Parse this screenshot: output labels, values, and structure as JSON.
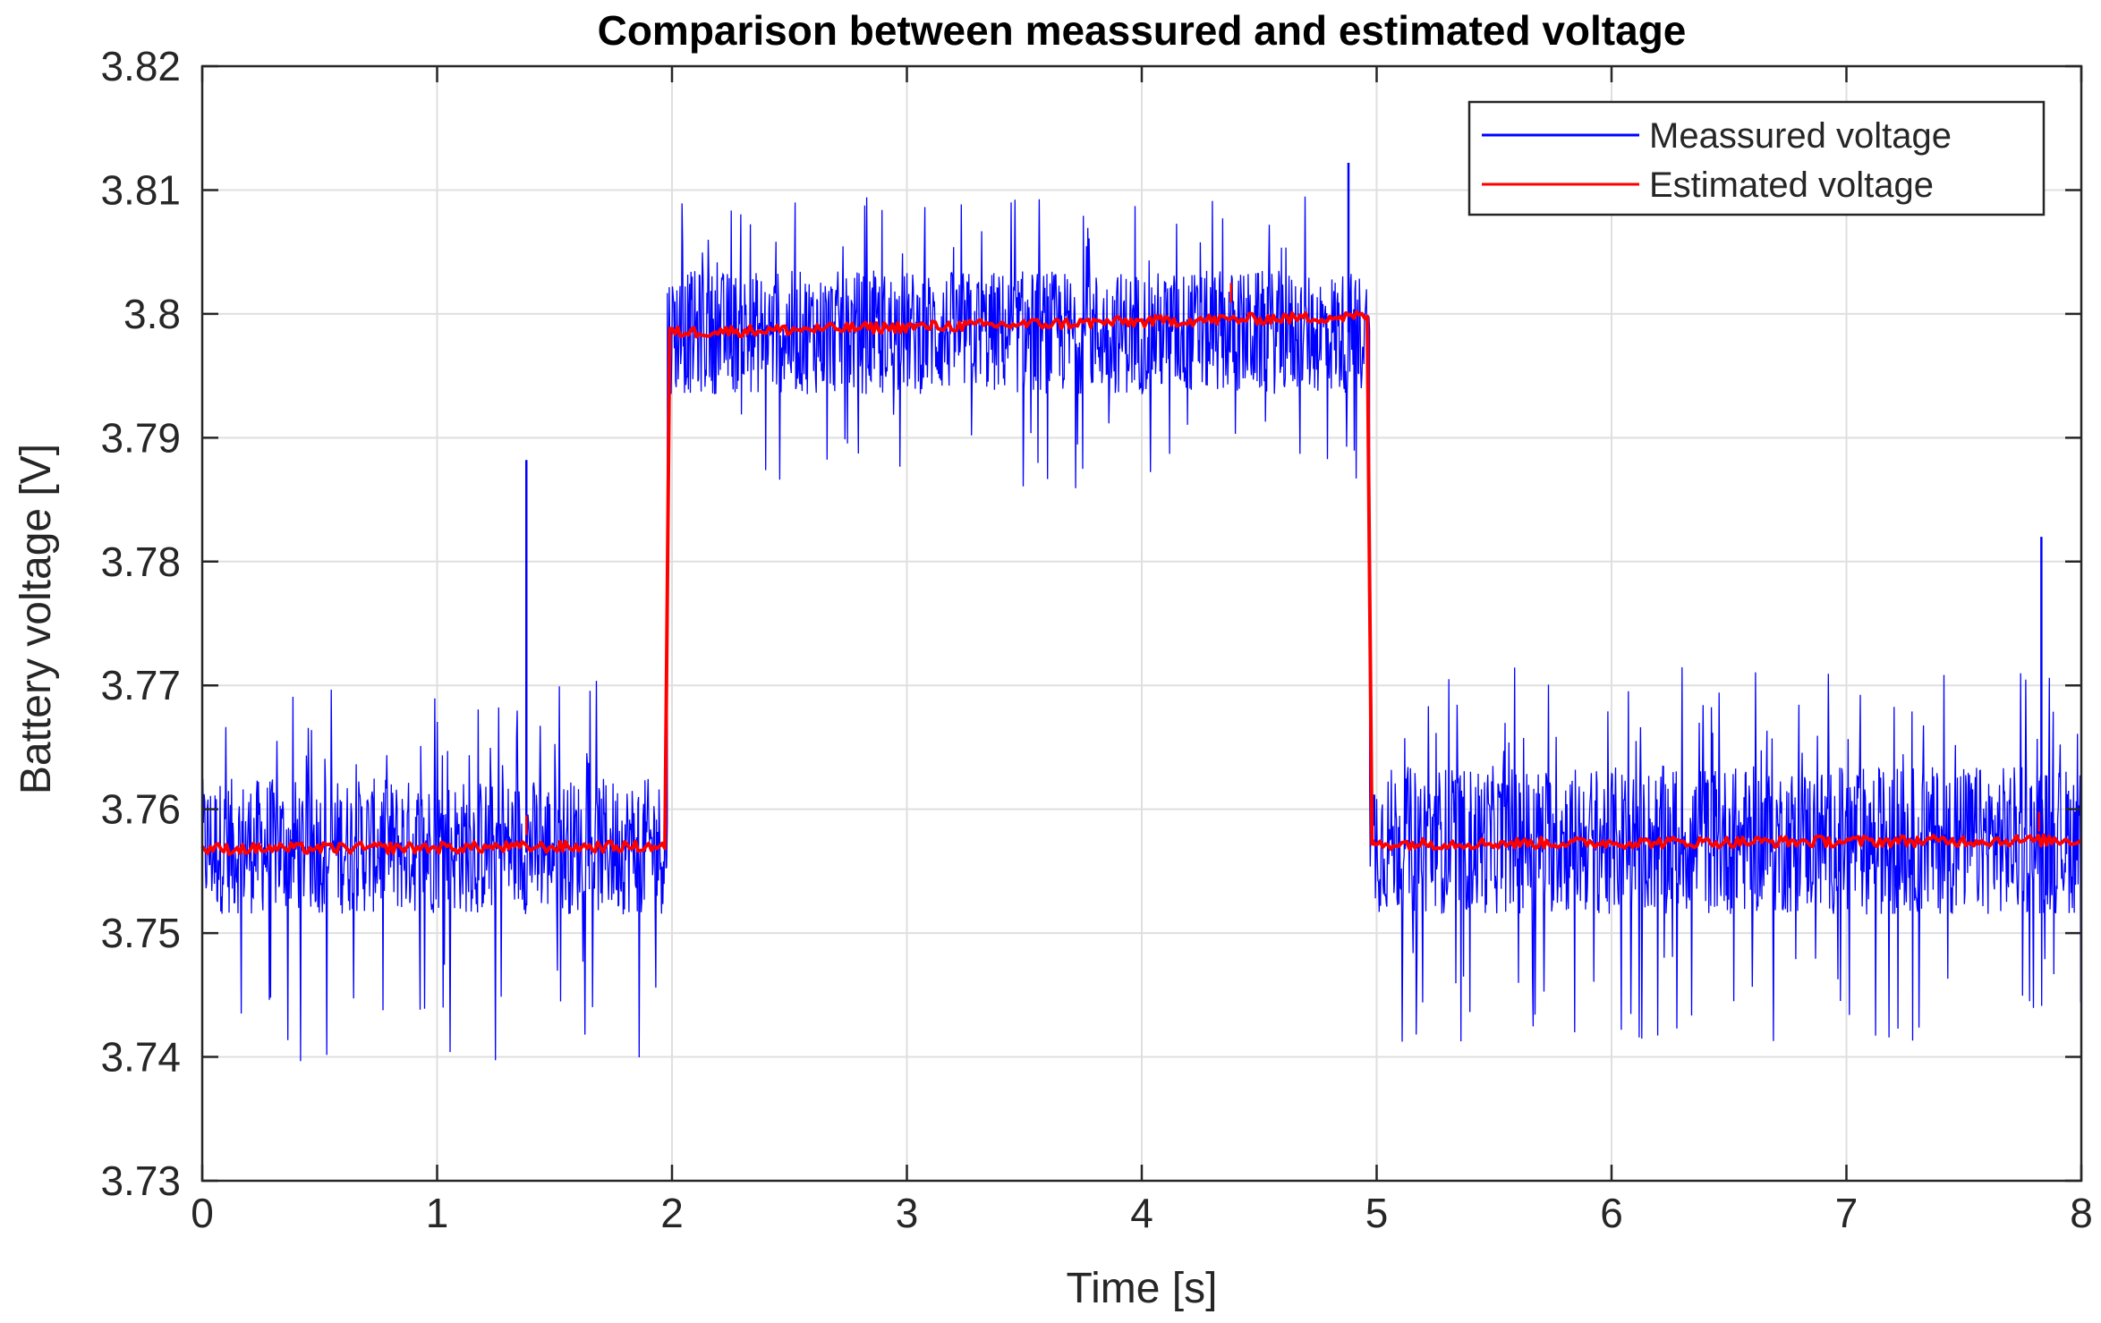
{
  "chart_data": {
    "type": "line",
    "title": "Comparison between meassured and estimated voltage",
    "xlabel": "Time [s]",
    "ylabel": "Battery voltage [V]",
    "xlim": [
      0,
      8
    ],
    "ylim": [
      3.73,
      3.82
    ],
    "x_ticks": [
      0,
      1,
      2,
      3,
      4,
      5,
      6,
      7,
      8
    ],
    "x_tick_labels": [
      "0",
      "1",
      "2",
      "3",
      "4",
      "5",
      "6",
      "7",
      "8"
    ],
    "y_ticks": [
      3.73,
      3.74,
      3.75,
      3.76,
      3.77,
      3.78,
      3.79,
      3.8,
      3.81,
      3.82
    ],
    "y_tick_labels": [
      "3.73",
      "3.74",
      "3.75",
      "3.76",
      "3.77",
      "3.78",
      "3.79",
      "3.8",
      "3.81",
      "3.82"
    ],
    "grid": true,
    "legend_position": "top-right",
    "series": [
      {
        "name": "Meassured voltage",
        "color": "#0000ff",
        "style": "noisy",
        "segments": [
          {
            "x_start": 0.0,
            "x_end": 1.98,
            "mean": 3.7565,
            "band": [
              3.7515,
              3.7625
            ],
            "min": 3.7395,
            "max": 3.7705
          },
          {
            "x_start": 1.98,
            "x_end": 4.97,
            "mean": 3.7985,
            "band": [
              3.7935,
              3.8035
            ],
            "min": 3.7858,
            "max": 3.8095
          },
          {
            "x_start": 4.97,
            "x_end": 8.0,
            "mean": 3.7565,
            "band": [
              3.7515,
              3.7635
            ],
            "min": 3.7412,
            "max": 3.7718
          }
        ],
        "spikes": [
          {
            "x": 1.38,
            "y": 3.7882
          },
          {
            "x": 4.88,
            "y": 3.8122
          },
          {
            "x": 7.83,
            "y": 3.782
          }
        ]
      },
      {
        "name": "Estimated voltage",
        "color": "#ff0000",
        "style": "steps",
        "points": [
          {
            "x": 0.0,
            "y": 3.7568
          },
          {
            "x": 1.97,
            "y": 3.757
          },
          {
            "x": 1.99,
            "y": 3.7985
          },
          {
            "x": 4.96,
            "y": 3.7998
          },
          {
            "x": 4.98,
            "y": 3.7572
          },
          {
            "x": 8.0,
            "y": 3.7575
          }
        ],
        "spikes": [
          {
            "x": 1.38,
            "y": 3.7595
          },
          {
            "x": 4.38,
            "y": 3.8025
          },
          {
            "x": 7.82,
            "y": 3.7598
          }
        ]
      }
    ]
  }
}
